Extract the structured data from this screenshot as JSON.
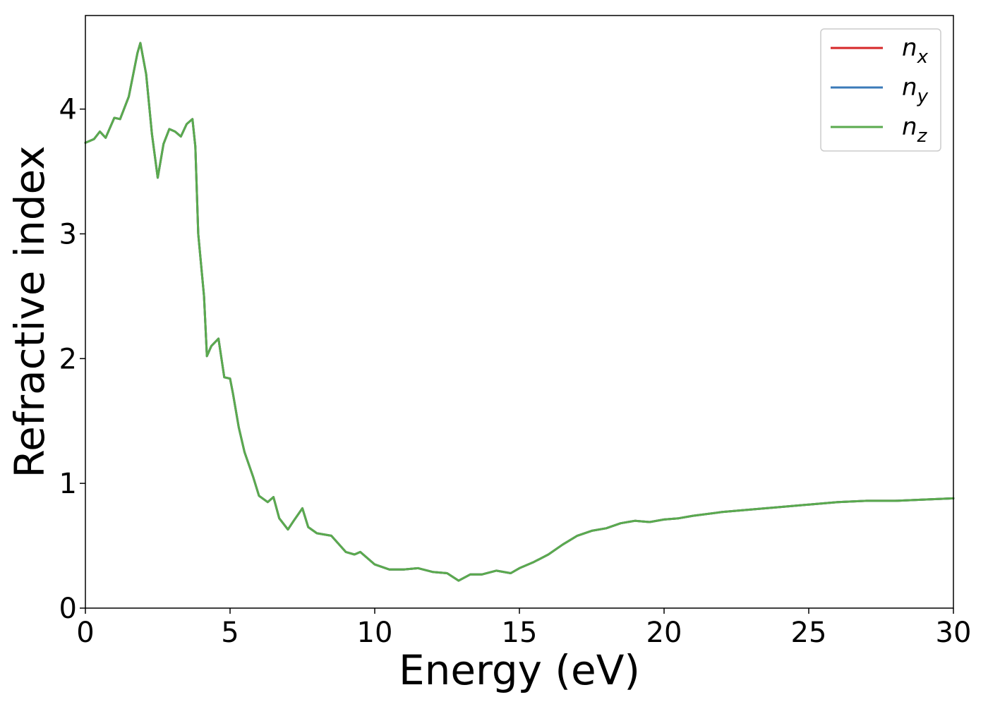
{
  "chart_data": {
    "type": "line",
    "xlabel": "Energy (eV)",
    "ylabel": "Refractive index",
    "xlim": [
      0,
      30
    ],
    "ylim": [
      0,
      4.75
    ],
    "xticks": [
      "0",
      "5",
      "10",
      "15",
      "20",
      "25",
      "30"
    ],
    "yticks": [
      "0",
      "1",
      "2",
      "3",
      "4"
    ],
    "legend_position": "top-right",
    "grid": false,
    "series": [
      {
        "name": "n_x",
        "label_base": "n",
        "label_sub": "x",
        "color": "#d62728",
        "x": [
          0,
          0.3,
          0.5,
          0.7,
          1.0,
          1.2,
          1.5,
          1.8,
          1.9,
          2.1,
          2.3,
          2.5,
          2.7,
          2.9,
          3.1,
          3.3,
          3.5,
          3.7,
          3.8,
          3.9,
          4.1,
          4.2,
          4.35,
          4.6,
          4.8,
          5.0,
          5.1,
          5.3,
          5.5,
          5.8,
          6.0,
          6.3,
          6.5,
          6.7,
          7.0,
          7.2,
          7.5,
          7.7,
          8.0,
          8.5,
          9.0,
          9.3,
          9.5,
          10.0,
          10.5,
          11.0,
          11.5,
          12.0,
          12.5,
          12.9,
          13.3,
          13.7,
          14.2,
          14.7,
          15.0,
          15.5,
          16.0,
          16.5,
          17.0,
          17.5,
          18.0,
          18.5,
          19.0,
          19.5,
          20.0,
          20.5,
          21.0,
          22.0,
          23.0,
          24.0,
          25.0,
          26.0,
          27.0,
          28.0,
          29.0,
          30.0
        ],
        "values": [
          3.73,
          3.76,
          3.82,
          3.77,
          3.93,
          3.92,
          4.1,
          4.45,
          4.53,
          4.28,
          3.8,
          3.45,
          3.72,
          3.84,
          3.82,
          3.78,
          3.88,
          3.92,
          3.7,
          3.0,
          2.5,
          2.02,
          2.1,
          2.16,
          1.85,
          1.84,
          1.72,
          1.45,
          1.25,
          1.05,
          0.9,
          0.85,
          0.89,
          0.72,
          0.63,
          0.7,
          0.8,
          0.65,
          0.6,
          0.58,
          0.45,
          0.43,
          0.45,
          0.35,
          0.31,
          0.31,
          0.32,
          0.29,
          0.28,
          0.22,
          0.27,
          0.27,
          0.3,
          0.28,
          0.32,
          0.37,
          0.43,
          0.51,
          0.58,
          0.62,
          0.64,
          0.68,
          0.7,
          0.69,
          0.71,
          0.72,
          0.74,
          0.77,
          0.79,
          0.81,
          0.83,
          0.85,
          0.86,
          0.86,
          0.87,
          0.88
        ]
      },
      {
        "name": "n_y",
        "label_base": "n",
        "label_sub": "y",
        "color": "#3a7ab8",
        "x": [
          0,
          0.3,
          0.5,
          0.7,
          1.0,
          1.2,
          1.5,
          1.8,
          1.9,
          2.1,
          2.3,
          2.5,
          2.7,
          2.9,
          3.1,
          3.3,
          3.5,
          3.7,
          3.8,
          3.9,
          4.1,
          4.2,
          4.35,
          4.6,
          4.8,
          5.0,
          5.1,
          5.3,
          5.5,
          5.8,
          6.0,
          6.3,
          6.5,
          6.7,
          7.0,
          7.2,
          7.5,
          7.7,
          8.0,
          8.5,
          9.0,
          9.3,
          9.5,
          10.0,
          10.5,
          11.0,
          11.5,
          12.0,
          12.5,
          12.9,
          13.3,
          13.7,
          14.2,
          14.7,
          15.0,
          15.5,
          16.0,
          16.5,
          17.0,
          17.5,
          18.0,
          18.5,
          19.0,
          19.5,
          20.0,
          20.5,
          21.0,
          22.0,
          23.0,
          24.0,
          25.0,
          26.0,
          27.0,
          28.0,
          29.0,
          30.0
        ],
        "values": [
          3.73,
          3.76,
          3.82,
          3.77,
          3.93,
          3.92,
          4.1,
          4.45,
          4.53,
          4.28,
          3.8,
          3.45,
          3.72,
          3.84,
          3.82,
          3.78,
          3.88,
          3.92,
          3.7,
          3.0,
          2.5,
          2.02,
          2.1,
          2.16,
          1.85,
          1.84,
          1.72,
          1.45,
          1.25,
          1.05,
          0.9,
          0.85,
          0.89,
          0.72,
          0.63,
          0.7,
          0.8,
          0.65,
          0.6,
          0.58,
          0.45,
          0.43,
          0.45,
          0.35,
          0.31,
          0.31,
          0.32,
          0.29,
          0.28,
          0.22,
          0.27,
          0.27,
          0.3,
          0.28,
          0.32,
          0.37,
          0.43,
          0.51,
          0.58,
          0.62,
          0.64,
          0.68,
          0.7,
          0.69,
          0.71,
          0.72,
          0.74,
          0.77,
          0.79,
          0.81,
          0.83,
          0.85,
          0.86,
          0.86,
          0.87,
          0.88
        ]
      },
      {
        "name": "n_z",
        "label_base": "n",
        "label_sub": "z",
        "color": "#5aaa4e",
        "x": [
          0,
          0.3,
          0.5,
          0.7,
          1.0,
          1.2,
          1.5,
          1.8,
          1.9,
          2.1,
          2.3,
          2.5,
          2.7,
          2.9,
          3.1,
          3.3,
          3.5,
          3.7,
          3.8,
          3.9,
          4.1,
          4.2,
          4.35,
          4.6,
          4.8,
          5.0,
          5.1,
          5.3,
          5.5,
          5.8,
          6.0,
          6.3,
          6.5,
          6.7,
          7.0,
          7.2,
          7.5,
          7.7,
          8.0,
          8.5,
          9.0,
          9.3,
          9.5,
          10.0,
          10.5,
          11.0,
          11.5,
          12.0,
          12.5,
          12.9,
          13.3,
          13.7,
          14.2,
          14.7,
          15.0,
          15.5,
          16.0,
          16.5,
          17.0,
          17.5,
          18.0,
          18.5,
          19.0,
          19.5,
          20.0,
          20.5,
          21.0,
          22.0,
          23.0,
          24.0,
          25.0,
          26.0,
          27.0,
          28.0,
          29.0,
          30.0
        ],
        "values": [
          3.73,
          3.76,
          3.82,
          3.77,
          3.93,
          3.92,
          4.1,
          4.45,
          4.53,
          4.28,
          3.8,
          3.45,
          3.72,
          3.84,
          3.82,
          3.78,
          3.88,
          3.92,
          3.7,
          3.0,
          2.5,
          2.02,
          2.1,
          2.16,
          1.85,
          1.84,
          1.72,
          1.45,
          1.25,
          1.05,
          0.9,
          0.85,
          0.89,
          0.72,
          0.63,
          0.7,
          0.8,
          0.65,
          0.6,
          0.58,
          0.45,
          0.43,
          0.45,
          0.35,
          0.31,
          0.31,
          0.32,
          0.29,
          0.28,
          0.22,
          0.27,
          0.27,
          0.3,
          0.28,
          0.32,
          0.37,
          0.43,
          0.51,
          0.58,
          0.62,
          0.64,
          0.68,
          0.7,
          0.69,
          0.71,
          0.72,
          0.74,
          0.77,
          0.79,
          0.81,
          0.83,
          0.85,
          0.86,
          0.86,
          0.87,
          0.88
        ]
      }
    ]
  }
}
